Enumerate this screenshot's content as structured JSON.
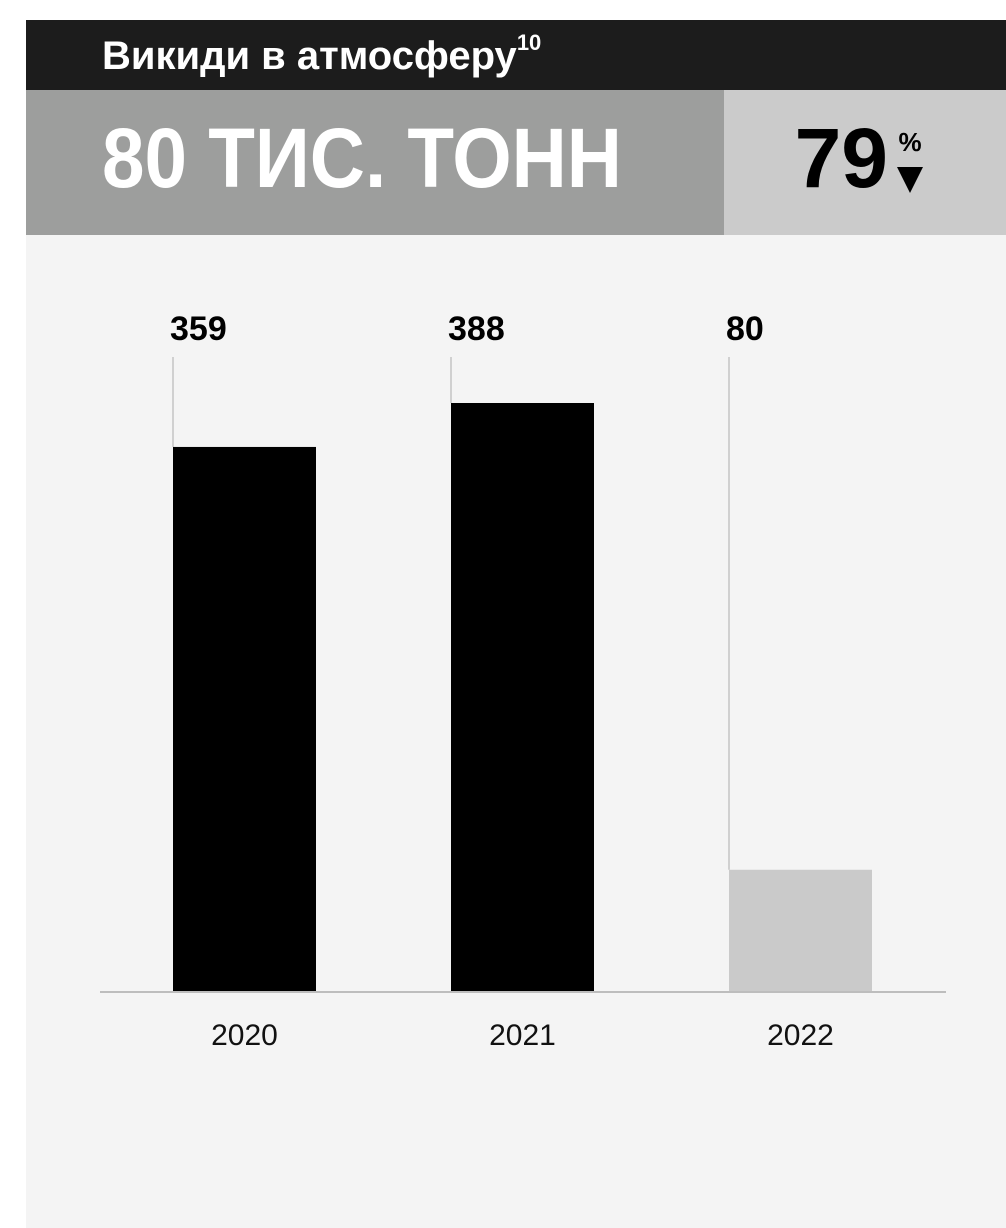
{
  "header": {
    "title": "Викиди в атмосферу",
    "footnote": "10",
    "headline": "80 ТИС. ТОНН",
    "change": "79",
    "change_unit": "%"
  },
  "chart_data": {
    "type": "bar",
    "categories": [
      "2020",
      "2021",
      "2022"
    ],
    "values": [
      359,
      388,
      80
    ],
    "colors": [
      "#000000",
      "#000000",
      "#cacaca"
    ]
  }
}
